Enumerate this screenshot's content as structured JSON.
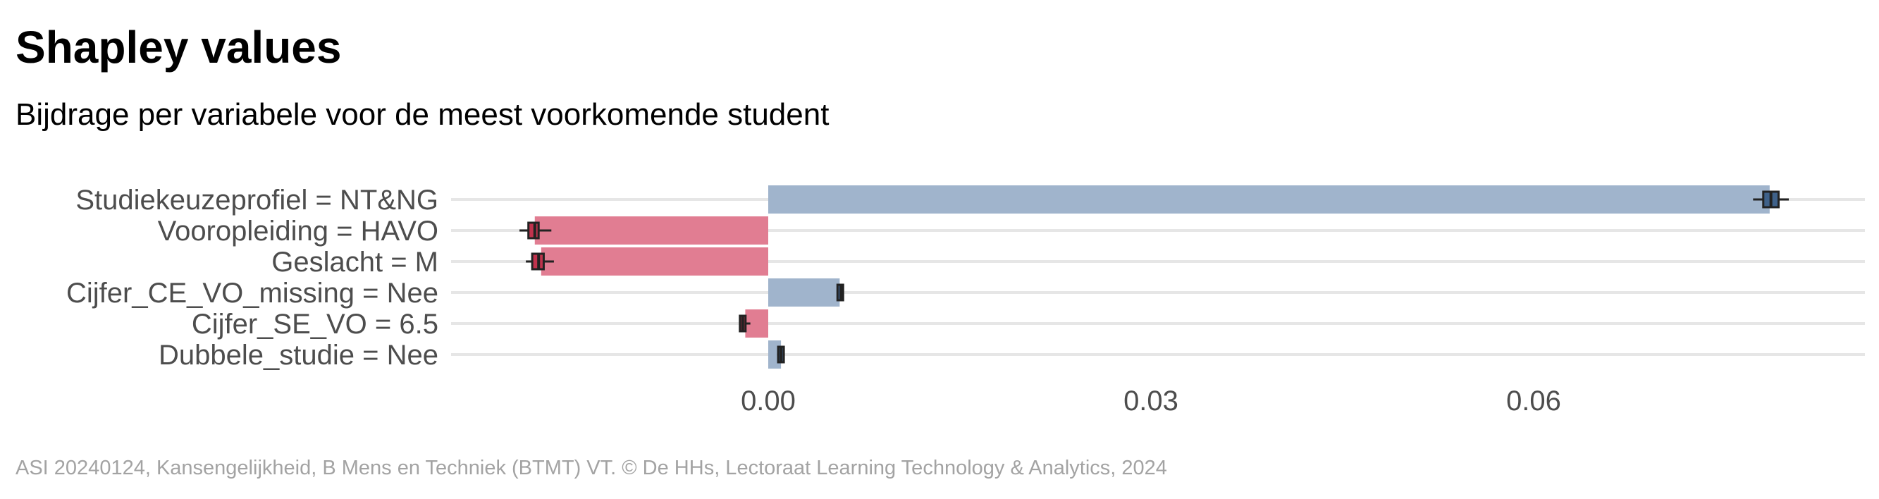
{
  "header": {
    "title": "Shapley values",
    "subtitle": "Bijdrage per variabele voor de meest voorkomende student"
  },
  "footer": {
    "caption": "ASI 20240124, Kansengelijkheid, B Mens en Techniek (BTMT) VT. © De HHs, Lectoraat Learning Technology & Analytics, 2024"
  },
  "colors": {
    "positive": "#a0b4cc",
    "negative": "#e17d92",
    "positive_box": "#3f6189",
    "negative_box": "#c0334d",
    "whisker": "#222222",
    "grid": "#e6e6e6"
  },
  "chart_data": {
    "type": "bar",
    "orientation": "horizontal",
    "title": "Shapley values",
    "subtitle": "Bijdrage per variabele voor de meest voorkomende student",
    "xlabel": "",
    "ylabel": "",
    "xlim": [
      -0.025,
      0.085
    ],
    "grid": true,
    "legend": "none",
    "x_ticks": [
      {
        "value": 0.0,
        "label": "0.00"
      },
      {
        "value": 0.03,
        "label": "0.03"
      },
      {
        "value": 0.06,
        "label": "0.06"
      }
    ],
    "categories": [
      "Studiekeuzeprofiel = NT&NG",
      "Vooropleiding = HAVO",
      "Geslacht = M",
      "Cijfer_CE_VO_missing = Nee",
      "Cijfer_SE_VO = 6.5",
      "Dubbele_studie = Nee"
    ],
    "values": [
      0.0785,
      -0.0183,
      -0.0178,
      0.0056,
      -0.0018,
      0.001
    ],
    "boxplots": [
      {
        "min": 0.0772,
        "q1": 0.078,
        "median": 0.0786,
        "q3": 0.0792,
        "max": 0.08
      },
      {
        "min": -0.0195,
        "q1": -0.0188,
        "median": -0.0183,
        "q3": -0.018,
        "max": -0.017
      },
      {
        "min": -0.019,
        "q1": -0.0185,
        "median": -0.018,
        "q3": -0.0176,
        "max": -0.0168
      },
      {
        "min": 0.0055,
        "q1": 0.0055,
        "median": 0.0057,
        "q3": 0.0058,
        "max": 0.0059
      },
      {
        "min": -0.0022,
        "q1": -0.0021,
        "median": -0.002,
        "q3": -0.0019,
        "max": -0.0014
      },
      {
        "min": 0.0007,
        "q1": 0.0008,
        "median": 0.001,
        "q3": 0.0012,
        "max": 0.0013
      }
    ]
  }
}
